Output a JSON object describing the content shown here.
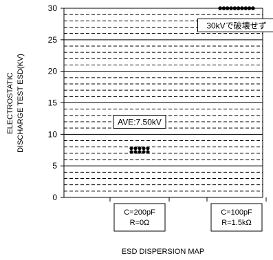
{
  "chart_data": {
    "type": "scatter",
    "title": "ESD DISPERSION MAP",
    "ylabel_lines": [
      "ELECTROSTATIC",
      "DISCHARGE TEST ESD(KV)"
    ],
    "xlabel": "",
    "ylim": [
      0,
      30
    ],
    "yticks": [
      0,
      5,
      10,
      15,
      20,
      25,
      30
    ],
    "grid": "dashed horizontal every 1 kV",
    "categories": [
      {
        "label_lines": [
          "C=200pF",
          "R=0Ω"
        ]
      },
      {
        "label_lines": [
          "C=100pF",
          "R=1.5kΩ"
        ]
      }
    ],
    "series": [
      {
        "category_index": 0,
        "values": [
          7.5,
          7.5,
          7.5,
          7.5,
          7.5,
          7.5,
          7.5,
          7.5,
          7.5,
          7.5
        ]
      },
      {
        "category_index": 1,
        "values": [
          30,
          30,
          30,
          30,
          30,
          30,
          30,
          30,
          30,
          30
        ]
      }
    ],
    "annotations": [
      {
        "text": "AVE:7.50kV",
        "category_index": 0,
        "y": 12
      },
      {
        "text": "30kVで破壊せず",
        "category_index": 1,
        "y": 27.3
      }
    ]
  }
}
